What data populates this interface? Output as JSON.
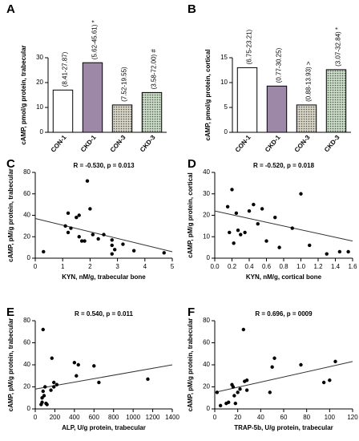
{
  "chart_data": [
    {
      "type": "bar",
      "label": "A",
      "ylabel": "cAMP, pmol/g protein, trabecular",
      "categories": [
        "CON-1",
        "CKD-1",
        "CON-3",
        "CKD-3"
      ],
      "values": [
        17,
        28,
        11,
        16
      ],
      "annotations": [
        "(8.41-27.87)",
        "(5.62-45.61) *",
        "(7.52-19.55)",
        "(3.58-72.00) #"
      ],
      "colors": [
        "#ffffff",
        "#9d88a8",
        "#d8d5c4",
        "#c8dcc4"
      ],
      "dotted": [
        false,
        false,
        true,
        true
      ],
      "ylim": [
        0,
        30
      ],
      "yticks": [
        0,
        10,
        20,
        30
      ]
    },
    {
      "type": "bar",
      "label": "B",
      "ylabel": "cAMP, pmol/g protein, cortical",
      "categories": [
        "CON-1",
        "CKD-1",
        "CON-3",
        "CKD-3"
      ],
      "values": [
        13,
        9.3,
        5.5,
        12.6
      ],
      "annotations": [
        "(6.75-23.21)",
        "(0.77-30.25)",
        "(0.88-13.93) >",
        "(3.07-32.84) *"
      ],
      "colors": [
        "#ffffff",
        "#9d88a8",
        "#d8d5c4",
        "#c8dcc4"
      ],
      "dotted": [
        false,
        false,
        true,
        true
      ],
      "ylim": [
        0,
        15
      ],
      "yticks": [
        0,
        5,
        10,
        15
      ]
    },
    {
      "type": "scatter",
      "label": "C",
      "title": "R = -0.530, p = 0.013",
      "xlabel": "KYN, nM/g, trabecular bone",
      "ylabel": "cAMP, pM/g protein, trabecular",
      "x": [
        0.3,
        1.1,
        1.2,
        1.2,
        1.3,
        1.5,
        1.6,
        1.6,
        1.7,
        1.8,
        1.9,
        2.0,
        2.1,
        2.3,
        2.5,
        2.8,
        2.8,
        2.8,
        2.9,
        3.2,
        3.6,
        4.7
      ],
      "values": [
        6,
        30,
        42,
        24,
        28,
        38,
        20,
        40,
        16,
        16,
        72,
        46,
        22,
        18,
        22,
        17,
        12,
        4,
        8,
        13,
        7,
        5
      ],
      "fit": {
        "x": [
          0,
          5
        ],
        "y": [
          37,
          6
        ]
      },
      "xlim": [
        0,
        5
      ],
      "xticks": [
        0,
        1,
        2,
        3,
        4,
        5
      ],
      "ylim": [
        0,
        80
      ],
      "yticks": [
        0,
        20,
        40,
        60,
        80
      ]
    },
    {
      "type": "scatter",
      "label": "D",
      "title": "R = -0.520, p = 0.018",
      "xlabel": "KYN, nM/g, cortical bone",
      "ylabel": "cAMP, pM/g protein, cortical",
      "x": [
        0.15,
        0.17,
        0.2,
        0.22,
        0.25,
        0.27,
        0.3,
        0.35,
        0.4,
        0.45,
        0.5,
        0.55,
        0.6,
        0.7,
        0.75,
        0.9,
        1.0,
        1.1,
        1.3,
        1.45,
        1.55
      ],
      "values": [
        24,
        12,
        32,
        7,
        21,
        13,
        11,
        12,
        22,
        25,
        16,
        23,
        8,
        19,
        5,
        14,
        30,
        6,
        2,
        3,
        3
      ],
      "fit": {
        "x": [
          0,
          1.6
        ],
        "y": [
          22,
          8
        ]
      },
      "xlim": [
        0,
        1.6
      ],
      "xticks": [
        {
          "value": 0,
          "label": "0.0"
        },
        0.2,
        0.4,
        0.6,
        0.8,
        {
          "value": 1,
          "label": "1.0"
        },
        1.2,
        1.4,
        1.6
      ],
      "ylim": [
        0,
        40
      ],
      "yticks": [
        0,
        10,
        20,
        30,
        40
      ]
    },
    {
      "type": "scatter",
      "label": "E",
      "title": "R = 0.540, p = 0.011",
      "xlabel": "ALP, U/g protein, trabecular",
      "ylabel": "cAMP, pM/g protein, trabecular",
      "x": [
        80,
        60,
        70,
        80,
        90,
        100,
        110,
        120,
        160,
        170,
        190,
        190,
        220,
        400,
        420,
        440,
        600,
        650,
        1150,
        70
      ],
      "values": [
        72,
        4,
        6,
        16,
        12,
        20,
        5,
        4,
        17,
        46,
        24,
        20,
        22,
        42,
        30,
        40,
        39,
        24,
        27,
        10
      ],
      "fit": {
        "x": [
          0,
          1400
        ],
        "y": [
          18,
          40
        ]
      },
      "xlim": [
        0,
        1400
      ],
      "xticks": [
        0,
        200,
        400,
        600,
        800,
        1000,
        1200,
        1400
      ],
      "ylim": [
        0,
        80
      ],
      "yticks": [
        0,
        20,
        40,
        60,
        80
      ]
    },
    {
      "type": "scatter",
      "label": "F",
      "title": "R = 0.696, p = 0009",
      "xlabel": "TRAP-5b, U/g protein, trabecular",
      "ylabel": "cAMP, pM/g protein, trabecular",
      "x": [
        2,
        5,
        10,
        12,
        15,
        16,
        17,
        18,
        20,
        22,
        25,
        26,
        28,
        28,
        48,
        50,
        52,
        75,
        95,
        100,
        105
      ],
      "values": [
        15,
        3,
        5,
        6,
        22,
        20,
        12,
        5,
        15,
        18,
        72,
        25,
        26,
        17,
        15,
        38,
        46,
        40,
        24,
        26,
        43
      ],
      "fit": {
        "x": [
          0,
          120
        ],
        "y": [
          15,
          43
        ]
      },
      "xlim": [
        0,
        120
      ],
      "xticks": [
        0,
        20,
        40,
        60,
        80,
        100,
        120
      ],
      "ylim": [
        0,
        80
      ],
      "yticks": [
        0,
        20,
        40,
        60,
        80
      ]
    }
  ]
}
